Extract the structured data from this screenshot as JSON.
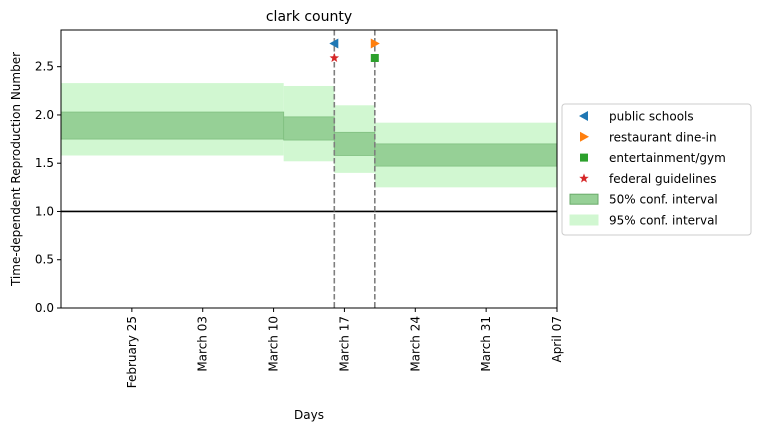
{
  "chart_data": {
    "type": "area",
    "title": "clark county",
    "xlabel": "Days",
    "ylabel": "Time-dependent Reproduction Number",
    "xlim": [
      "2020-02-18",
      "2020-04-07"
    ],
    "ylim": [
      0,
      2.88
    ],
    "x_ticks": [
      {
        "date": "2020-02-25",
        "label": "February 25"
      },
      {
        "date": "2020-03-03",
        "label": "March 03"
      },
      {
        "date": "2020-03-10",
        "label": "March 10"
      },
      {
        "date": "2020-03-17",
        "label": "March 17"
      },
      {
        "date": "2020-03-24",
        "label": "March 24"
      },
      {
        "date": "2020-03-31",
        "label": "March 31"
      },
      {
        "date": "2020-04-07",
        "label": "April 07"
      }
    ],
    "y_ticks": [
      "0.0",
      "0.5",
      "1.0",
      "1.5",
      "2.0",
      "2.5"
    ],
    "grid": false,
    "legend_placement": "outside-right",
    "reference_line": {
      "y": 1.0,
      "color": "#000000"
    },
    "periods": [
      {
        "start": "2020-02-18",
        "end": "2020-03-11",
        "ci50": [
          1.75,
          2.03
        ],
        "ci95": [
          1.58,
          2.33
        ]
      },
      {
        "start": "2020-03-11",
        "end": "2020-03-16",
        "ci50": [
          1.74,
          1.98
        ],
        "ci95": [
          1.52,
          2.3
        ]
      },
      {
        "start": "2020-03-16",
        "end": "2020-03-20",
        "ci50": [
          1.58,
          1.82
        ],
        "ci95": [
          1.4,
          2.1
        ]
      },
      {
        "start": "2020-03-20",
        "end": "2020-04-07",
        "ci50": [
          1.47,
          1.7
        ],
        "ci95": [
          1.25,
          1.92
        ]
      }
    ],
    "intervention_lines": [
      "2020-03-16",
      "2020-03-20"
    ],
    "interventions": [
      {
        "name": "public schools",
        "date": "2020-03-16",
        "y": 2.74,
        "marker": "triangle-left",
        "color": "#1f77b4"
      },
      {
        "name": "restaurant dine-in",
        "date": "2020-03-20",
        "y": 2.74,
        "marker": "triangle-right",
        "color": "#ff7f0e"
      },
      {
        "name": "entertainment/gym",
        "date": "2020-03-20",
        "y": 2.59,
        "marker": "square",
        "color": "#2ca02c"
      },
      {
        "name": "federal guidelines",
        "date": "2020-03-16",
        "y": 2.59,
        "marker": "star",
        "color": "#d62728"
      }
    ],
    "legend": [
      {
        "label": "public schools",
        "type": "marker",
        "marker": "triangle-left",
        "color": "#1f77b4"
      },
      {
        "label": "restaurant dine-in",
        "type": "marker",
        "marker": "triangle-right",
        "color": "#ff7f0e"
      },
      {
        "label": "entertainment/gym",
        "type": "marker",
        "marker": "square",
        "color": "#2ca02c"
      },
      {
        "label": "federal guidelines",
        "type": "marker",
        "marker": "star",
        "color": "#d62728"
      },
      {
        "label": "50% conf. interval",
        "type": "patch",
        "color": "#96d096",
        "edge": "#6aaa6a"
      },
      {
        "label": "95% conf. interval",
        "type": "patch",
        "color": "#d1f7d1",
        "edge": "#d1f7d1"
      }
    ],
    "colors": {
      "ci50": "#96d096",
      "ci95": "#d1f7d1",
      "vline": "#7f7f7f"
    }
  }
}
